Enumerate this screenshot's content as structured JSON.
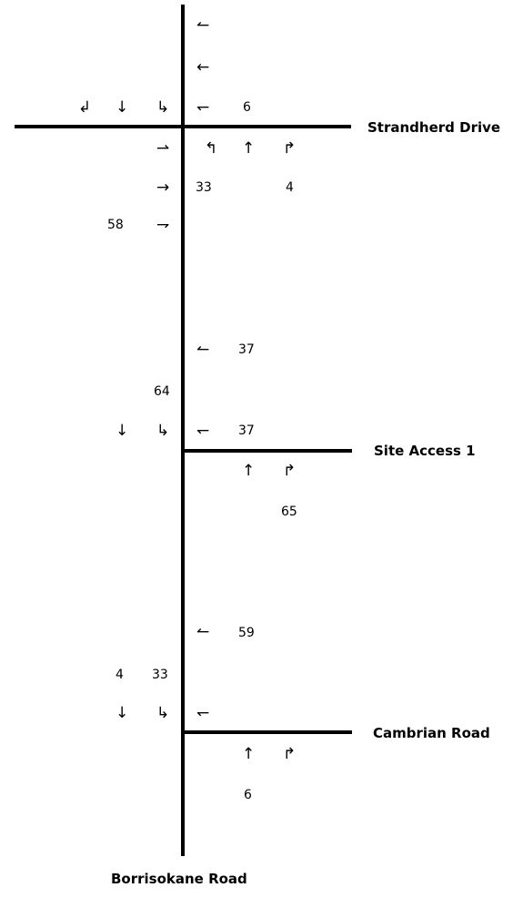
{
  "roads": {
    "main": "Borrisokane Road",
    "cross1": "Strandherd Drive",
    "cross2": "Site Access 1",
    "cross3": "Cambrian Road"
  },
  "int1": {
    "sb_right_turn": "↲",
    "sb_through": "↓",
    "sb_left_turn": "↳",
    "wb_uturn": "↼",
    "wb_through": "←",
    "wb_left": "↽",
    "wb_left_volume": "6",
    "eb_uturn": "⇀",
    "eb_through": "→",
    "eb_through_volume": "33",
    "eb_right": "⇁",
    "eb_right_volume": "58",
    "nb_left": "↰",
    "nb_through": "↑",
    "nb_right": "↱",
    "nb_right_volume": "4"
  },
  "int2": {
    "wb_upper": "↼",
    "wb_upper_volume": "37",
    "sb_volume": "64",
    "sb_through": "↓",
    "sb_left_turn": "↳",
    "wb_lower": "↽",
    "wb_lower_volume": "37",
    "nb_through": "↑",
    "nb_right": "↱",
    "nb_volume": "65"
  },
  "int3": {
    "wb_upper": "↼",
    "wb_upper_volume": "59",
    "sb_through_volume": "4",
    "sb_left_volume": "33",
    "sb_through": "↓",
    "sb_left_turn": "↳",
    "wb_lower": "↽",
    "nb_through": "↑",
    "nb_right": "↱",
    "nb_volume": "6"
  }
}
